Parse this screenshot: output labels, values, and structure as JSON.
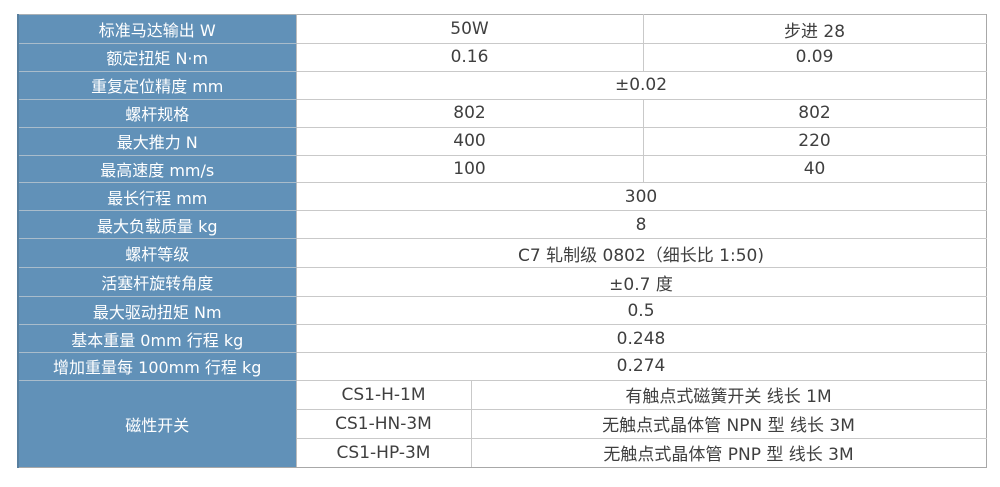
{
  "colors": {
    "header_bg": "#6191b8",
    "header_text": "#ffffff",
    "header_divider": "#a9bccb",
    "header_left_accent": "#587f9f",
    "value_text": "#3f3f3f",
    "inner_border": "#c9c9c9",
    "outer_border": "#adadad",
    "page_bg": "#ffffff"
  },
  "table": {
    "rows": [
      {
        "label": "标准马达输出 W",
        "values": [
          "50W",
          "步进 28"
        ]
      },
      {
        "label": "额定扭矩 N·m",
        "values": [
          "0.16",
          "0.09"
        ]
      },
      {
        "label": "重复定位精度 mm",
        "value": "±0.02"
      },
      {
        "label": "螺杆规格",
        "values": [
          "802",
          "802"
        ]
      },
      {
        "label": "最大推力 N",
        "values": [
          "400",
          "220"
        ]
      },
      {
        "label": "最高速度 mm/s",
        "values": [
          "100",
          "40"
        ]
      },
      {
        "label": "最长行程 mm",
        "value": "300"
      },
      {
        "label": "最大负载质量 kg",
        "value": "8"
      },
      {
        "label": "螺杆等级",
        "value": "C7 轧制级 0802（细长比 1:50)"
      },
      {
        "label": "活塞杆旋转角度",
        "value": "±0.7 度"
      },
      {
        "label": "最大驱动扭矩 Nm",
        "value": "0.5"
      },
      {
        "label": "基本重量 0mm 行程 kg",
        "value": "0.248"
      },
      {
        "label": "增加重量每 100mm 行程 kg",
        "value": "0.274"
      }
    ],
    "switch_group": {
      "label": "磁性开关",
      "options": [
        {
          "model": "CS1-H-1M",
          "description": "有触点式磁簧开关 线长 1M"
        },
        {
          "model": "CS1-HN-3M",
          "description": "无触点式晶体管 NPN 型 线长 3M"
        },
        {
          "model": "CS1-HP-3M",
          "description": "无触点式晶体管 PNP 型 线长 3M"
        }
      ]
    }
  }
}
